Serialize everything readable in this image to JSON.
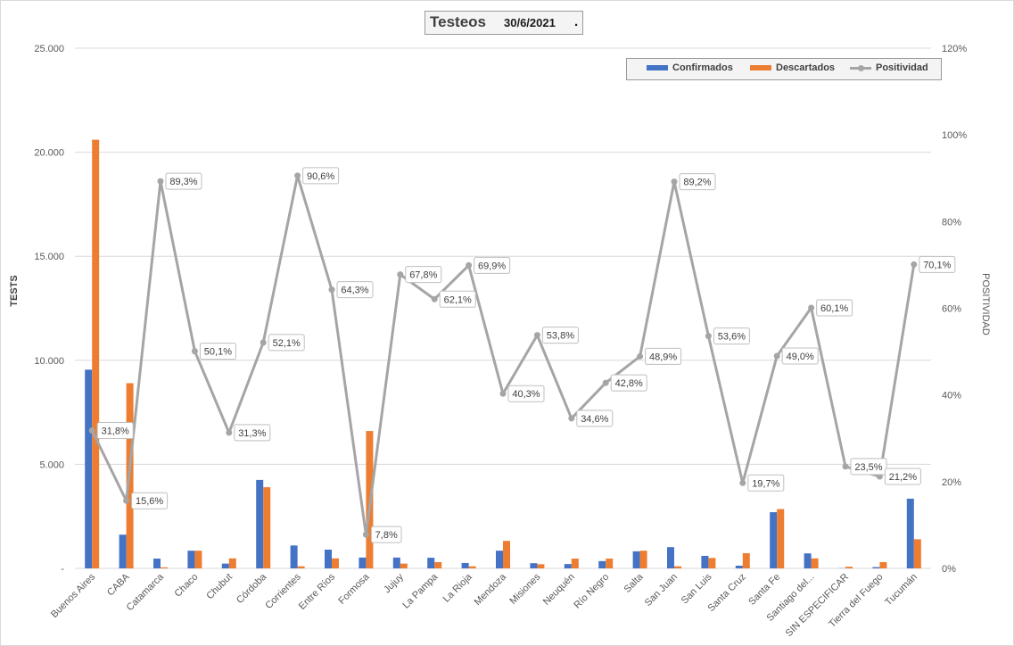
{
  "title": {
    "main": "Testeos",
    "date": "30/6/2021",
    "dot": "."
  },
  "colors": {
    "confirmados": "#4472c4",
    "descartados": "#ed7d31",
    "positividad": "#a5a5a5",
    "grid": "#d9d9d9"
  },
  "legend": {
    "confirmados": "Confirmados",
    "descartados": "Descartados",
    "positividad": "Positividad"
  },
  "chart_data": {
    "type": "bar",
    "title": "Testeos",
    "subtitle": "30/6/2021",
    "ylabel": "TESTS",
    "y2label": "POSITIVIDAD",
    "ylim": [
      0,
      25000
    ],
    "y2lim": [
      0,
      120
    ],
    "yticks": [
      "-",
      "5.000",
      "10.000",
      "15.000",
      "20.000",
      "25.000"
    ],
    "y2ticks": [
      "0%",
      "20%",
      "40%",
      "60%",
      "80%",
      "100%",
      "120%"
    ],
    "grid": true,
    "legend_position": "top-right",
    "categories": [
      "Buenos Aires",
      "CABA",
      "Catamarca",
      "Chaco",
      "Chubut",
      "Córdoba",
      "Corrientes",
      "Entre Ríos",
      "Formosa",
      "Jujuy",
      "La Pampa",
      "La Rioja",
      "Mendoza",
      "Misiones",
      "Neuquén",
      "Río Negro",
      "Salta",
      "San Juan",
      "San Luis",
      "Santa Cruz",
      "Santa Fe",
      "Santiago del...",
      "SIN ESPECIFICAR",
      "Tierra del Fuego",
      "Tucumán"
    ],
    "series": [
      {
        "name": "Confirmados",
        "type": "bar",
        "axis": "left",
        "values": [
          9550,
          1620,
          470,
          850,
          230,
          4250,
          1100,
          900,
          520,
          520,
          510,
          260,
          850,
          250,
          210,
          350,
          820,
          1020,
          600,
          130,
          2700,
          720,
          10,
          60,
          3350
        ]
      },
      {
        "name": "Descartados",
        "type": "bar",
        "axis": "left",
        "values": [
          20600,
          8900,
          50,
          850,
          480,
          3900,
          100,
          480,
          6600,
          230,
          300,
          100,
          1320,
          200,
          470,
          470,
          850,
          100,
          500,
          730,
          2850,
          480,
          80,
          300,
          1400
        ]
      },
      {
        "name": "Positividad",
        "type": "line",
        "axis": "right",
        "unit": "%",
        "values": [
          31.8,
          15.6,
          89.3,
          50.1,
          31.3,
          52.1,
          90.6,
          64.3,
          7.8,
          67.8,
          62.1,
          69.9,
          40.3,
          53.8,
          34.6,
          42.8,
          48.9,
          89.2,
          53.6,
          19.7,
          49.0,
          60.1,
          23.5,
          21.2,
          70.1
        ],
        "labels": [
          "31,8%",
          "15,6%",
          "89,3%",
          "50,1%",
          "31,3%",
          "52,1%",
          "90,6%",
          "64,3%",
          "7,8%",
          "67,8%",
          "62,1%",
          "69,9%",
          "40,3%",
          "53,8%",
          "34,6%",
          "42,8%",
          "48,9%",
          "89,2%",
          "53,6%",
          "19,7%",
          "49,0%",
          "60,1%",
          "23,5%",
          "21,2%",
          "70,1%"
        ]
      }
    ]
  }
}
